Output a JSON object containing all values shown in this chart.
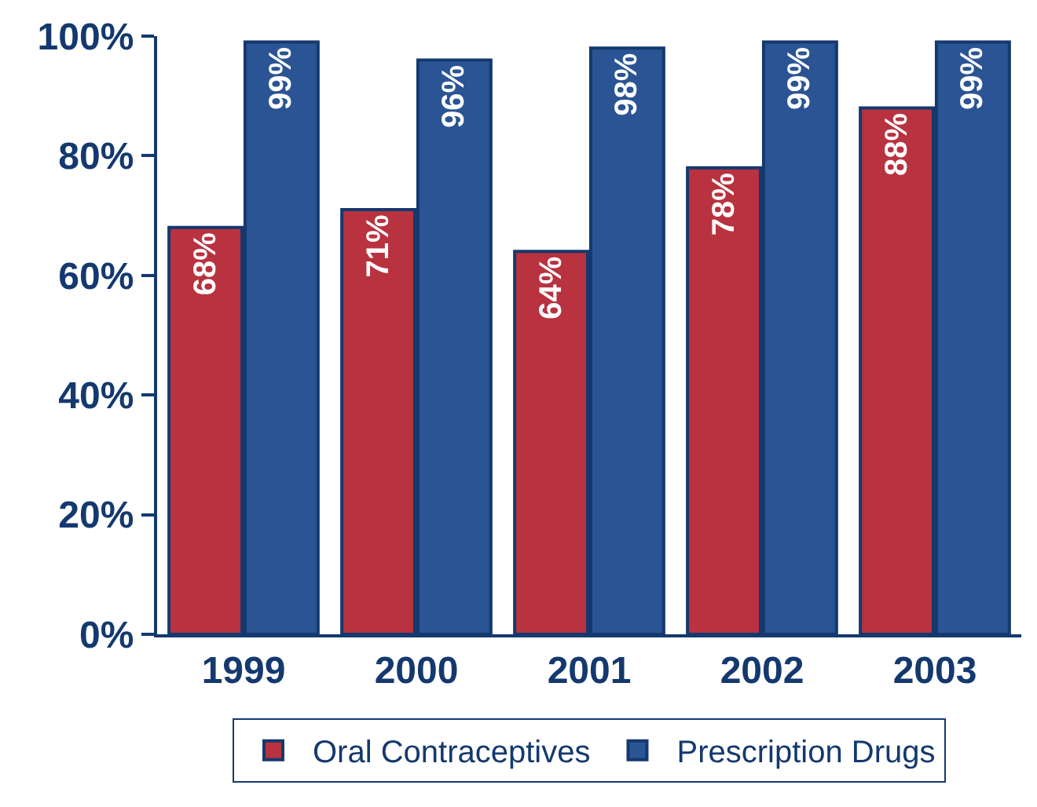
{
  "chart_data": {
    "type": "bar",
    "categories": [
      "1999",
      "2000",
      "2001",
      "2002",
      "2003"
    ],
    "series": [
      {
        "name": "Oral Contraceptives",
        "color": "#b8323f",
        "values": [
          68,
          71,
          64,
          78,
          88
        ],
        "value_labels": [
          "68%",
          "71%",
          "64%",
          "78%",
          "88%"
        ]
      },
      {
        "name": "Prescription Drugs",
        "color": "#2a5494",
        "values": [
          99,
          96,
          98,
          99,
          99
        ],
        "value_labels": [
          "99%",
          "96%",
          "98%",
          "99%",
          "99%"
        ]
      }
    ],
    "ylim": [
      0,
      100
    ],
    "yticks": [
      {
        "value": 0,
        "label": "0%"
      },
      {
        "value": 20,
        "label": "20%"
      },
      {
        "value": 40,
        "label": "40%"
      },
      {
        "value": 60,
        "label": "60%"
      },
      {
        "value": 80,
        "label": "80%"
      },
      {
        "value": 100,
        "label": "100%"
      }
    ],
    "legend": "bottom"
  }
}
